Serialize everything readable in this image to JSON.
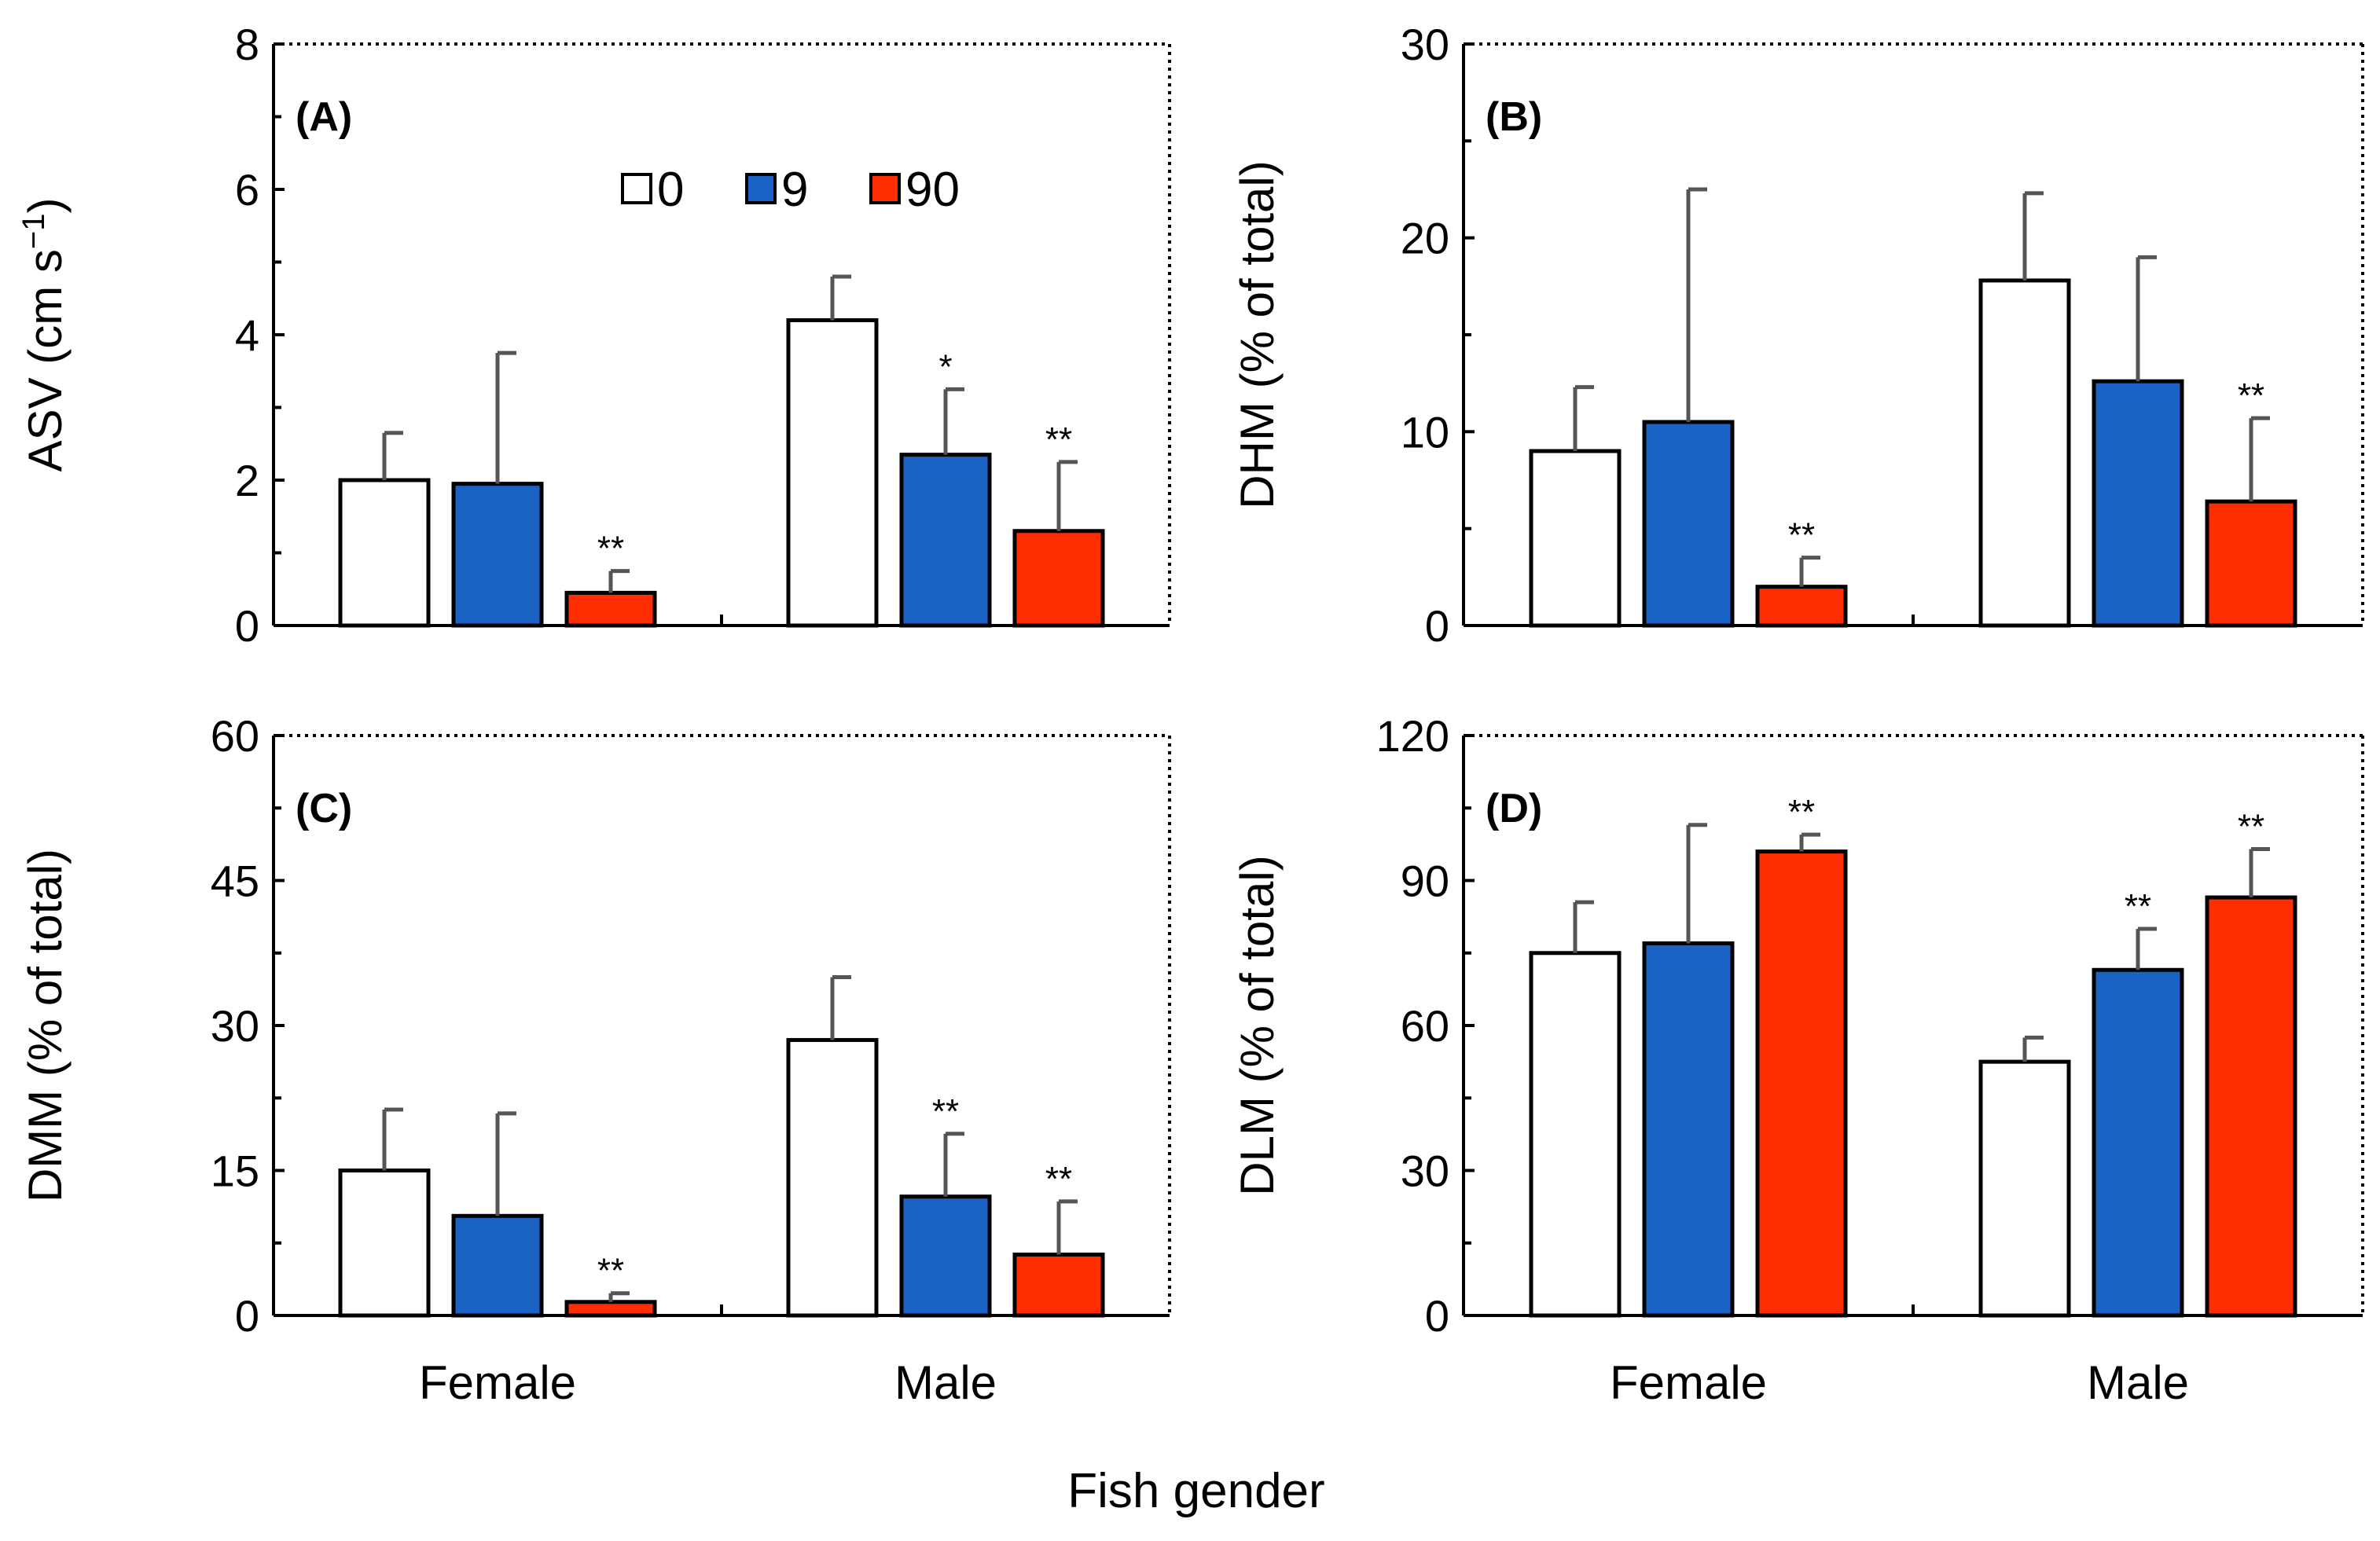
{
  "figure": {
    "xlabel": "Fish gender",
    "legend": [
      {
        "label": "0",
        "color": "#ffffff"
      },
      {
        "label": "9",
        "color": "#1a63c4"
      },
      {
        "label": "90",
        "color": "#ff2e00"
      }
    ]
  },
  "chart_data": [
    {
      "type": "bar",
      "panel": "(A)",
      "ylabel_main": "ASV (cm s",
      "ylabel_sup": "−1",
      "ylabel_close": ")",
      "ylim": [
        0,
        8
      ],
      "yticks": [
        "0",
        "2",
        "4",
        "6",
        "8"
      ],
      "categories": [
        "Female",
        "Male"
      ],
      "series": [
        {
          "name": "0",
          "values": [
            2.0,
            4.2
          ],
          "errors": [
            0.65,
            0.6
          ],
          "sig": [
            "",
            ""
          ]
        },
        {
          "name": "9",
          "values": [
            1.95,
            2.35
          ],
          "errors": [
            1.8,
            0.9
          ],
          "sig": [
            "",
            "*"
          ]
        },
        {
          "name": "90",
          "values": [
            0.45,
            1.3
          ],
          "errors": [
            0.3,
            0.95
          ],
          "sig": [
            "**",
            "**"
          ]
        }
      ]
    },
    {
      "type": "bar",
      "panel": "(B)",
      "ylabel_main": "DHM (% of total)",
      "ylabel_sup": "",
      "ylabel_close": "",
      "ylim": [
        0,
        30
      ],
      "yticks": [
        "0",
        "10",
        "20",
        "30"
      ],
      "categories": [
        "Female",
        "Male"
      ],
      "series": [
        {
          "name": "0",
          "values": [
            9.0,
            17.8
          ],
          "errors": [
            3.3,
            4.5
          ],
          "sig": [
            "",
            ""
          ]
        },
        {
          "name": "9",
          "values": [
            10.5,
            12.6
          ],
          "errors": [
            12.0,
            6.4
          ],
          "sig": [
            "",
            ""
          ]
        },
        {
          "name": "90",
          "values": [
            2.0,
            6.4
          ],
          "errors": [
            1.5,
            4.3
          ],
          "sig": [
            "**",
            "**"
          ]
        }
      ]
    },
    {
      "type": "bar",
      "panel": "(C)",
      "ylabel_main": "DMM (% of total)",
      "ylabel_sup": "",
      "ylabel_close": "",
      "ylim": [
        0,
        60
      ],
      "yticks": [
        "0",
        "15",
        "30",
        "45",
        "60"
      ],
      "categories": [
        "Female",
        "Male"
      ],
      "series": [
        {
          "name": "0",
          "values": [
            15.0,
            28.5
          ],
          "errors": [
            6.3,
            6.5
          ],
          "sig": [
            "",
            ""
          ]
        },
        {
          "name": "9",
          "values": [
            10.3,
            12.3
          ],
          "errors": [
            10.6,
            6.5
          ],
          "sig": [
            "",
            "**"
          ]
        },
        {
          "name": "90",
          "values": [
            1.4,
            6.3
          ],
          "errors": [
            0.9,
            5.5
          ],
          "sig": [
            "**",
            "**"
          ]
        }
      ]
    },
    {
      "type": "bar",
      "panel": "(D)",
      "ylabel_main": "DLM (% of total)",
      "ylabel_sup": "",
      "ylabel_close": "",
      "ylim": [
        0,
        120
      ],
      "yticks": [
        "0",
        "30",
        "60",
        "90",
        "120"
      ],
      "categories": [
        "Female",
        "Male"
      ],
      "series": [
        {
          "name": "0",
          "values": [
            75.0,
            52.5
          ],
          "errors": [
            10.5,
            5.0
          ],
          "sig": [
            "",
            ""
          ]
        },
        {
          "name": "9",
          "values": [
            77.0,
            71.5
          ],
          "errors": [
            24.5,
            8.5
          ],
          "sig": [
            "",
            "**"
          ]
        },
        {
          "name": "90",
          "values": [
            96.0,
            86.5
          ],
          "errors": [
            3.5,
            10.0
          ],
          "sig": [
            "**",
            "**"
          ]
        }
      ]
    }
  ]
}
